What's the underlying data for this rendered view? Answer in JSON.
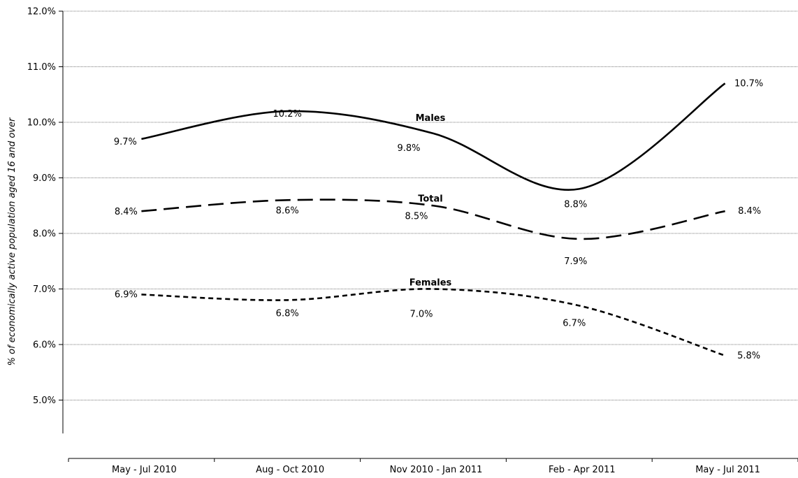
{
  "chart_data": {
    "type": "line",
    "title": "",
    "xlabel": "",
    "ylabel": "% of economically active population aged 16 and over",
    "categories": [
      "May - Jul 2010",
      "Aug - Oct 2010",
      "Nov 2010 - Jan 2011",
      "Feb - Apr 2011",
      "May - Jul 2011"
    ],
    "ylim": [
      4.4,
      12.0
    ],
    "yticks": [
      5.0,
      6.0,
      7.0,
      8.0,
      9.0,
      10.0,
      11.0,
      12.0
    ],
    "ytick_labels": [
      "5.0%",
      "6.0%",
      "7.0%",
      "8.0%",
      "9.0%",
      "10.0%",
      "11.0%",
      "12.0%"
    ],
    "grid": true,
    "series": [
      {
        "name": "Males",
        "line_style": "solid",
        "values": [
          9.7,
          10.2,
          9.8,
          8.8,
          10.7
        ],
        "labels": [
          "9.7%",
          "10.2%",
          "9.8%",
          "8.8%",
          "10.7%"
        ]
      },
      {
        "name": "Total",
        "line_style": "long-dash",
        "values": [
          8.4,
          8.6,
          8.5,
          7.9,
          8.4
        ],
        "labels": [
          "8.4%",
          "8.6%",
          "8.5%",
          "7.9%",
          "8.4%"
        ]
      },
      {
        "name": "Females",
        "line_style": "short-dash",
        "values": [
          6.9,
          6.8,
          7.0,
          6.7,
          5.8
        ],
        "labels": [
          "6.9%",
          "6.8%",
          "7.0%",
          "6.7%",
          "5.8%"
        ]
      }
    ]
  }
}
